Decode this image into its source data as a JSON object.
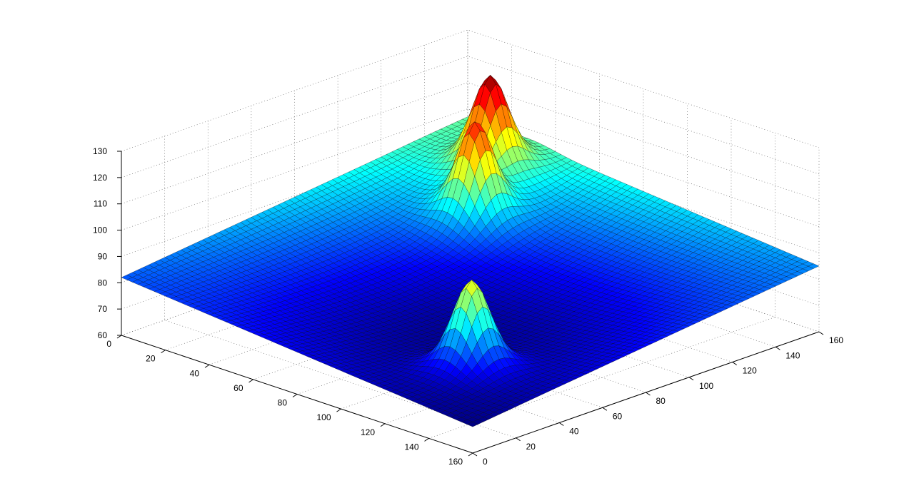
{
  "chart_data": {
    "type": "surface",
    "title": "",
    "xlabel": "",
    "ylabel": "",
    "zlabel": "",
    "colormap": "jet",
    "grid": true,
    "xlim": [
      0,
      160
    ],
    "ylim": [
      0,
      160
    ],
    "zlim": [
      60,
      130
    ],
    "x_ticks": [
      0,
      20,
      40,
      60,
      80,
      100,
      120,
      140,
      160
    ],
    "y_ticks": [
      0,
      20,
      40,
      60,
      80,
      100,
      120,
      140,
      160
    ],
    "z_ticks": [
      60,
      70,
      80,
      90,
      100,
      110,
      120,
      130
    ],
    "x_tick_labels": [
      "0",
      "20",
      "40",
      "60",
      "80",
      "100",
      "120",
      "140",
      "160"
    ],
    "y_tick_labels": [
      "0",
      "20",
      "40",
      "60",
      "80",
      "100",
      "120",
      "140",
      "160"
    ],
    "z_tick_labels": [
      "60",
      "70",
      "80",
      "90",
      "100",
      "110",
      "120",
      "130"
    ],
    "surface": {
      "base_corner_far": 97,
      "base_corner_left": 82,
      "base_corner_right": 85,
      "base_corner_near": 70,
      "peaks": [
        {
          "x": 30,
          "y": 140,
          "height": 127
        },
        {
          "x": 45,
          "y": 118,
          "height": 120
        },
        {
          "x": 125,
          "y": 35,
          "height": 106
        }
      ]
    }
  }
}
